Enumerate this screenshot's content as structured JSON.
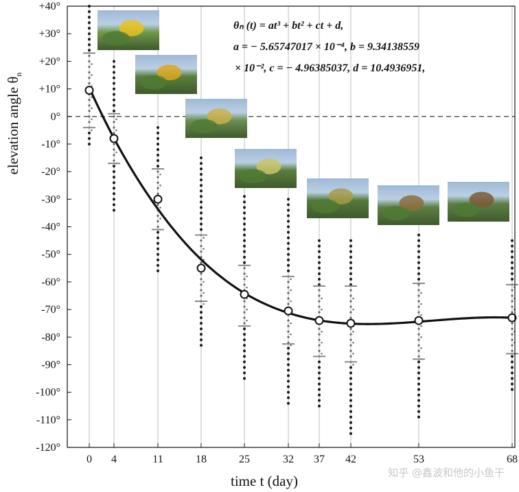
{
  "chart_data": {
    "type": "scatter",
    "xlabel": "time t (day)",
    "ylabel": "elevation angle θ",
    "ylabel_sub": "n",
    "x_ticks": [
      0,
      4,
      11,
      18,
      25,
      32,
      37,
      42,
      53,
      68
    ],
    "ylim": [
      -120,
      40
    ],
    "y_ticks": [
      "+40°",
      "+30°",
      "+20°",
      "+10°",
      "0°",
      "-10°",
      "-20°",
      "-30°",
      "-40°",
      "-50°",
      "-60°",
      "-70°",
      "-80°",
      "-90°",
      "-100°",
      "-110°",
      "-120°"
    ],
    "y_tick_values": [
      40,
      30,
      20,
      10,
      0,
      -10,
      -20,
      -30,
      -40,
      -50,
      -60,
      -70,
      -80,
      -90,
      -100,
      -110,
      -120
    ],
    "grid_vertical": true,
    "zero_line": "dashed",
    "means": [
      {
        "x": 0,
        "y": 9.5,
        "sd_low": -4,
        "sd_high": 23,
        "min": -10,
        "max": 40
      },
      {
        "x": 4,
        "y": -8,
        "sd_low": -17,
        "sd_high": 1,
        "min": -34,
        "max": 20
      },
      {
        "x": 11,
        "y": -30,
        "sd_low": -41,
        "sd_high": -19,
        "min": -56,
        "max": -4
      },
      {
        "x": 18,
        "y": -55,
        "sd_low": -67,
        "sd_high": -43,
        "min": -84,
        "max": -15
      },
      {
        "x": 25,
        "y": -64.5,
        "sd_low": -76,
        "sd_high": -54,
        "min": -95,
        "max": -29
      },
      {
        "x": 32,
        "y": -70.5,
        "sd_low": -82.5,
        "sd_high": -58,
        "min": -105,
        "max": -30
      },
      {
        "x": 37,
        "y": -74,
        "sd_low": -87,
        "sd_high": -61.5,
        "min": -105,
        "max": -45
      },
      {
        "x": 42,
        "y": -75,
        "sd_low": -89,
        "sd_high": -61.5,
        "min": -116,
        "max": -45
      },
      {
        "x": 53,
        "y": -74,
        "sd_low": -88,
        "sd_high": -60.5,
        "min": -110,
        "max": -43
      },
      {
        "x": 68,
        "y": -73,
        "sd_low": -86,
        "sd_high": -61,
        "min": -100,
        "max": -45
      }
    ],
    "fit": {
      "a": -0.000565747017,
      "b": 0.0934138559,
      "c": -4.96385037,
      "d": 10.4936951
    }
  },
  "equation": {
    "line1": "θₙ (t)  = at³ + bt² + ct + d,",
    "line2": "a =  − 5.65747017 × 10⁻⁴, b = 9.34138559",
    "line3": "× 10⁻², c =  − 4.96385037, d = 10.4936951,"
  },
  "watermark": "知乎 @鑫波和他的小鱼干",
  "colors": {
    "curve": "#111111",
    "grid": "#bdbdbd",
    "dots": "#1a1a1a",
    "sd": "#888888"
  }
}
